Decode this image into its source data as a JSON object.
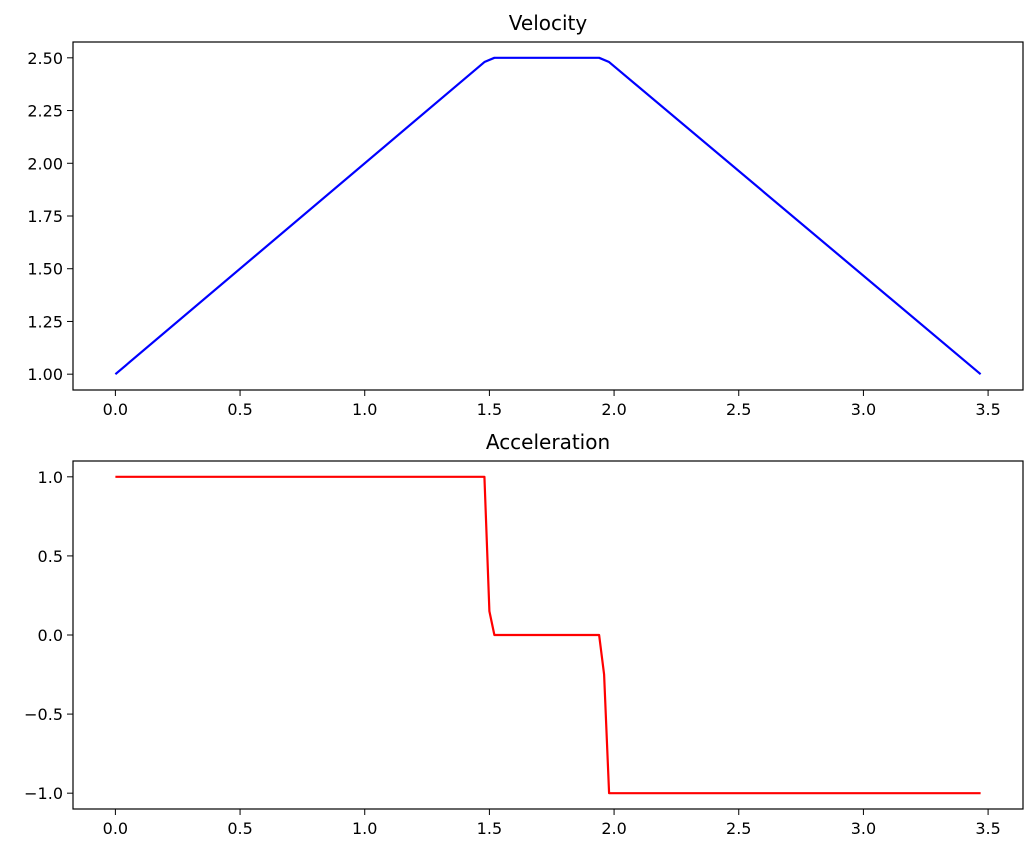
{
  "chart_data": [
    {
      "type": "line",
      "title": "Velocity",
      "xlabel": "",
      "ylabel": "",
      "xlim": [
        -0.17,
        3.64
      ],
      "ylim": [
        0.925,
        2.575
      ],
      "x_ticks": [
        0.0,
        0.5,
        1.0,
        1.5,
        2.0,
        2.5,
        3.0,
        3.5
      ],
      "x_tick_labels": [
        "0.0",
        "0.5",
        "1.0",
        "1.5",
        "2.0",
        "2.5",
        "3.0",
        "3.5"
      ],
      "y_ticks": [
        1.0,
        1.25,
        1.5,
        1.75,
        2.0,
        2.25,
        2.5
      ],
      "y_tick_labels": [
        "1.00",
        "1.25",
        "1.50",
        "1.75",
        "2.00",
        "2.25",
        "2.50"
      ],
      "grid": false,
      "series": [
        {
          "color": "#0000ff",
          "x": [
            0.0,
            1.48,
            1.52,
            1.94,
            1.98,
            3.47
          ],
          "y": [
            1.0,
            2.48,
            2.5,
            2.5,
            2.48,
            1.0
          ]
        }
      ]
    },
    {
      "type": "line",
      "title": "Acceleration",
      "xlabel": "",
      "ylabel": "",
      "xlim": [
        -0.17,
        3.64
      ],
      "ylim": [
        -1.1,
        1.1
      ],
      "x_ticks": [
        0.0,
        0.5,
        1.0,
        1.5,
        2.0,
        2.5,
        3.0,
        3.5
      ],
      "x_tick_labels": [
        "0.0",
        "0.5",
        "1.0",
        "1.5",
        "2.0",
        "2.5",
        "3.0",
        "3.5"
      ],
      "y_ticks": [
        1.0,
        0.5,
        0.0,
        -0.5,
        -1.0
      ],
      "y_tick_labels": [
        "1.0",
        "0.5",
        "0.0",
        "−0.5",
        "−1.0"
      ],
      "grid": false,
      "series": [
        {
          "color": "#ff0000",
          "x": [
            0.0,
            1.48,
            1.5,
            1.52,
            1.94,
            1.96,
            1.98,
            3.47
          ],
          "y": [
            1.0,
            1.0,
            0.15,
            0.0,
            0.0,
            -0.25,
            -1.0,
            -1.0
          ]
        }
      ]
    }
  ]
}
